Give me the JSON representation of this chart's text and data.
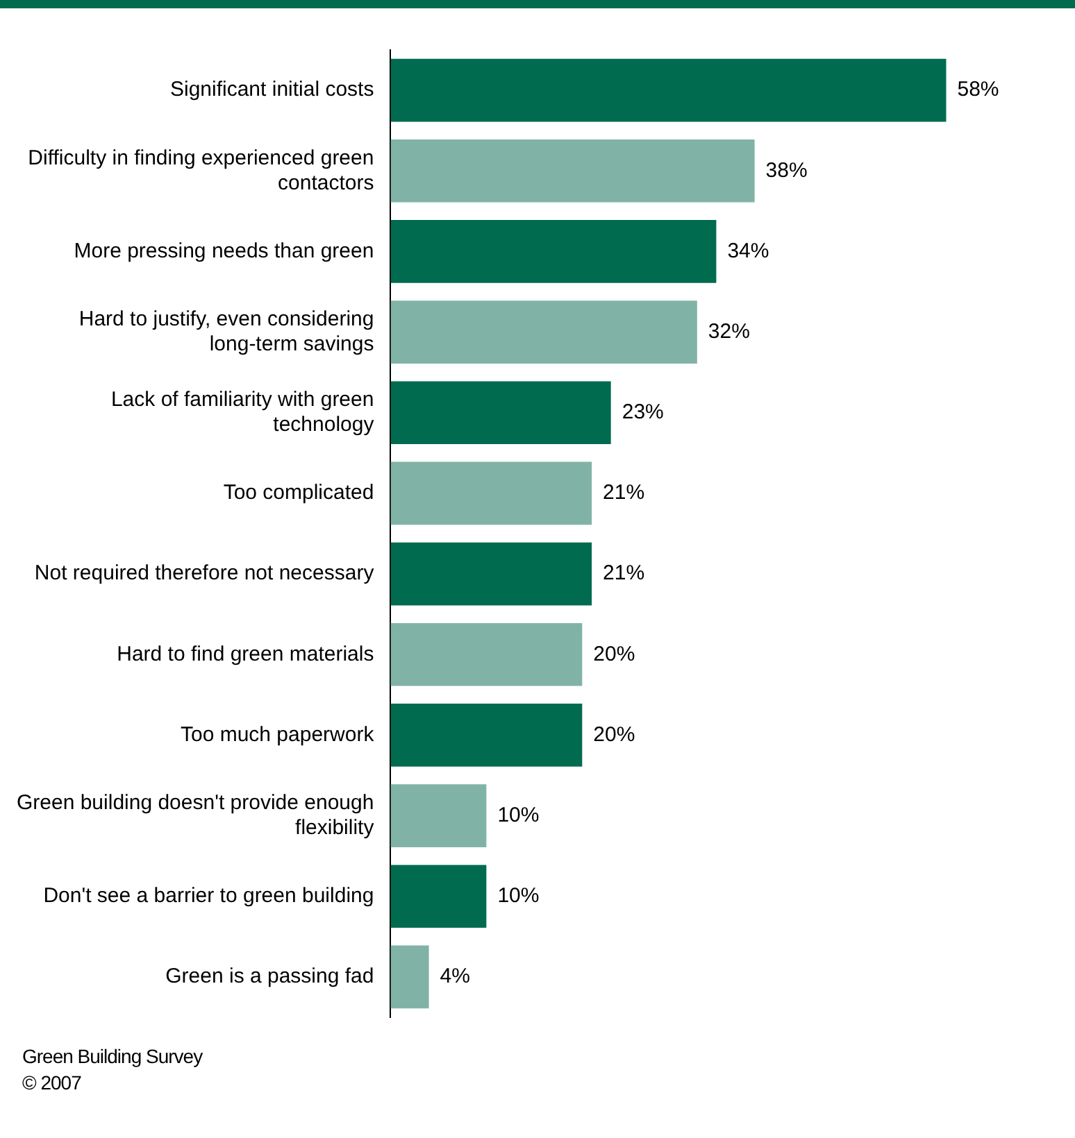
{
  "chart_data": {
    "type": "bar",
    "orientation": "horizontal",
    "categories": [
      "Significant initial costs",
      "Difficulty in finding experienced green contactors",
      "More pressing needs than green",
      "Hard to justify, even considering long-term savings",
      "Lack of familiarity with green technology",
      "Too complicated",
      "Not required therefore not necessary",
      "Hard to find green materials",
      "Too much paperwork",
      "Green building doesn't provide enough flexibility",
      "Don't see a barrier to green building",
      "Green is a passing fad"
    ],
    "values": [
      58,
      38,
      34,
      32,
      23,
      21,
      21,
      20,
      20,
      10,
      10,
      4
    ],
    "colors": [
      "#006b4f",
      "#80b3a6",
      "#006b4f",
      "#80b3a6",
      "#006b4f",
      "#80b3a6",
      "#006b4f",
      "#80b3a6",
      "#006b4f",
      "#80b3a6",
      "#006b4f",
      "#80b3a6"
    ],
    "value_labels": [
      "58%",
      "38%",
      "34%",
      "32%",
      "23%",
      "21%",
      "21%",
      "20%",
      "20%",
      "10%",
      "10%",
      "4%"
    ],
    "legend": false,
    "tick_labels": "y",
    "annotations": [
      "Green Building Survey",
      "© 2007"
    ]
  }
}
